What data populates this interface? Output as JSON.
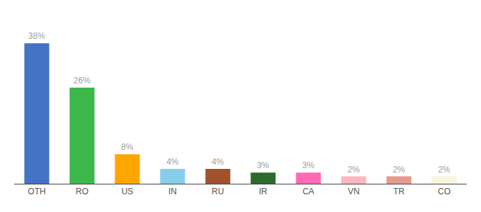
{
  "chart_data": {
    "type": "bar",
    "categories": [
      "OTH",
      "RO",
      "US",
      "IN",
      "RU",
      "IR",
      "CA",
      "VN",
      "TR",
      "CO"
    ],
    "values": [
      38,
      26,
      8,
      4,
      4,
      3,
      3,
      2,
      2,
      2
    ],
    "value_labels": [
      "38%",
      "26%",
      "8%",
      "4%",
      "4%",
      "3%",
      "3%",
      "2%",
      "2%",
      "2%"
    ],
    "colors": [
      "#4472C4",
      "#3CB84A",
      "#FFA500",
      "#87CEEB",
      "#A0522D",
      "#2D6A2D",
      "#FF69B4",
      "#FFB6C1",
      "#E8998D",
      "#F5F5DC"
    ],
    "ylim": [
      0,
      44
    ],
    "grid": false,
    "data_labels": true,
    "tick_labels": "x"
  }
}
